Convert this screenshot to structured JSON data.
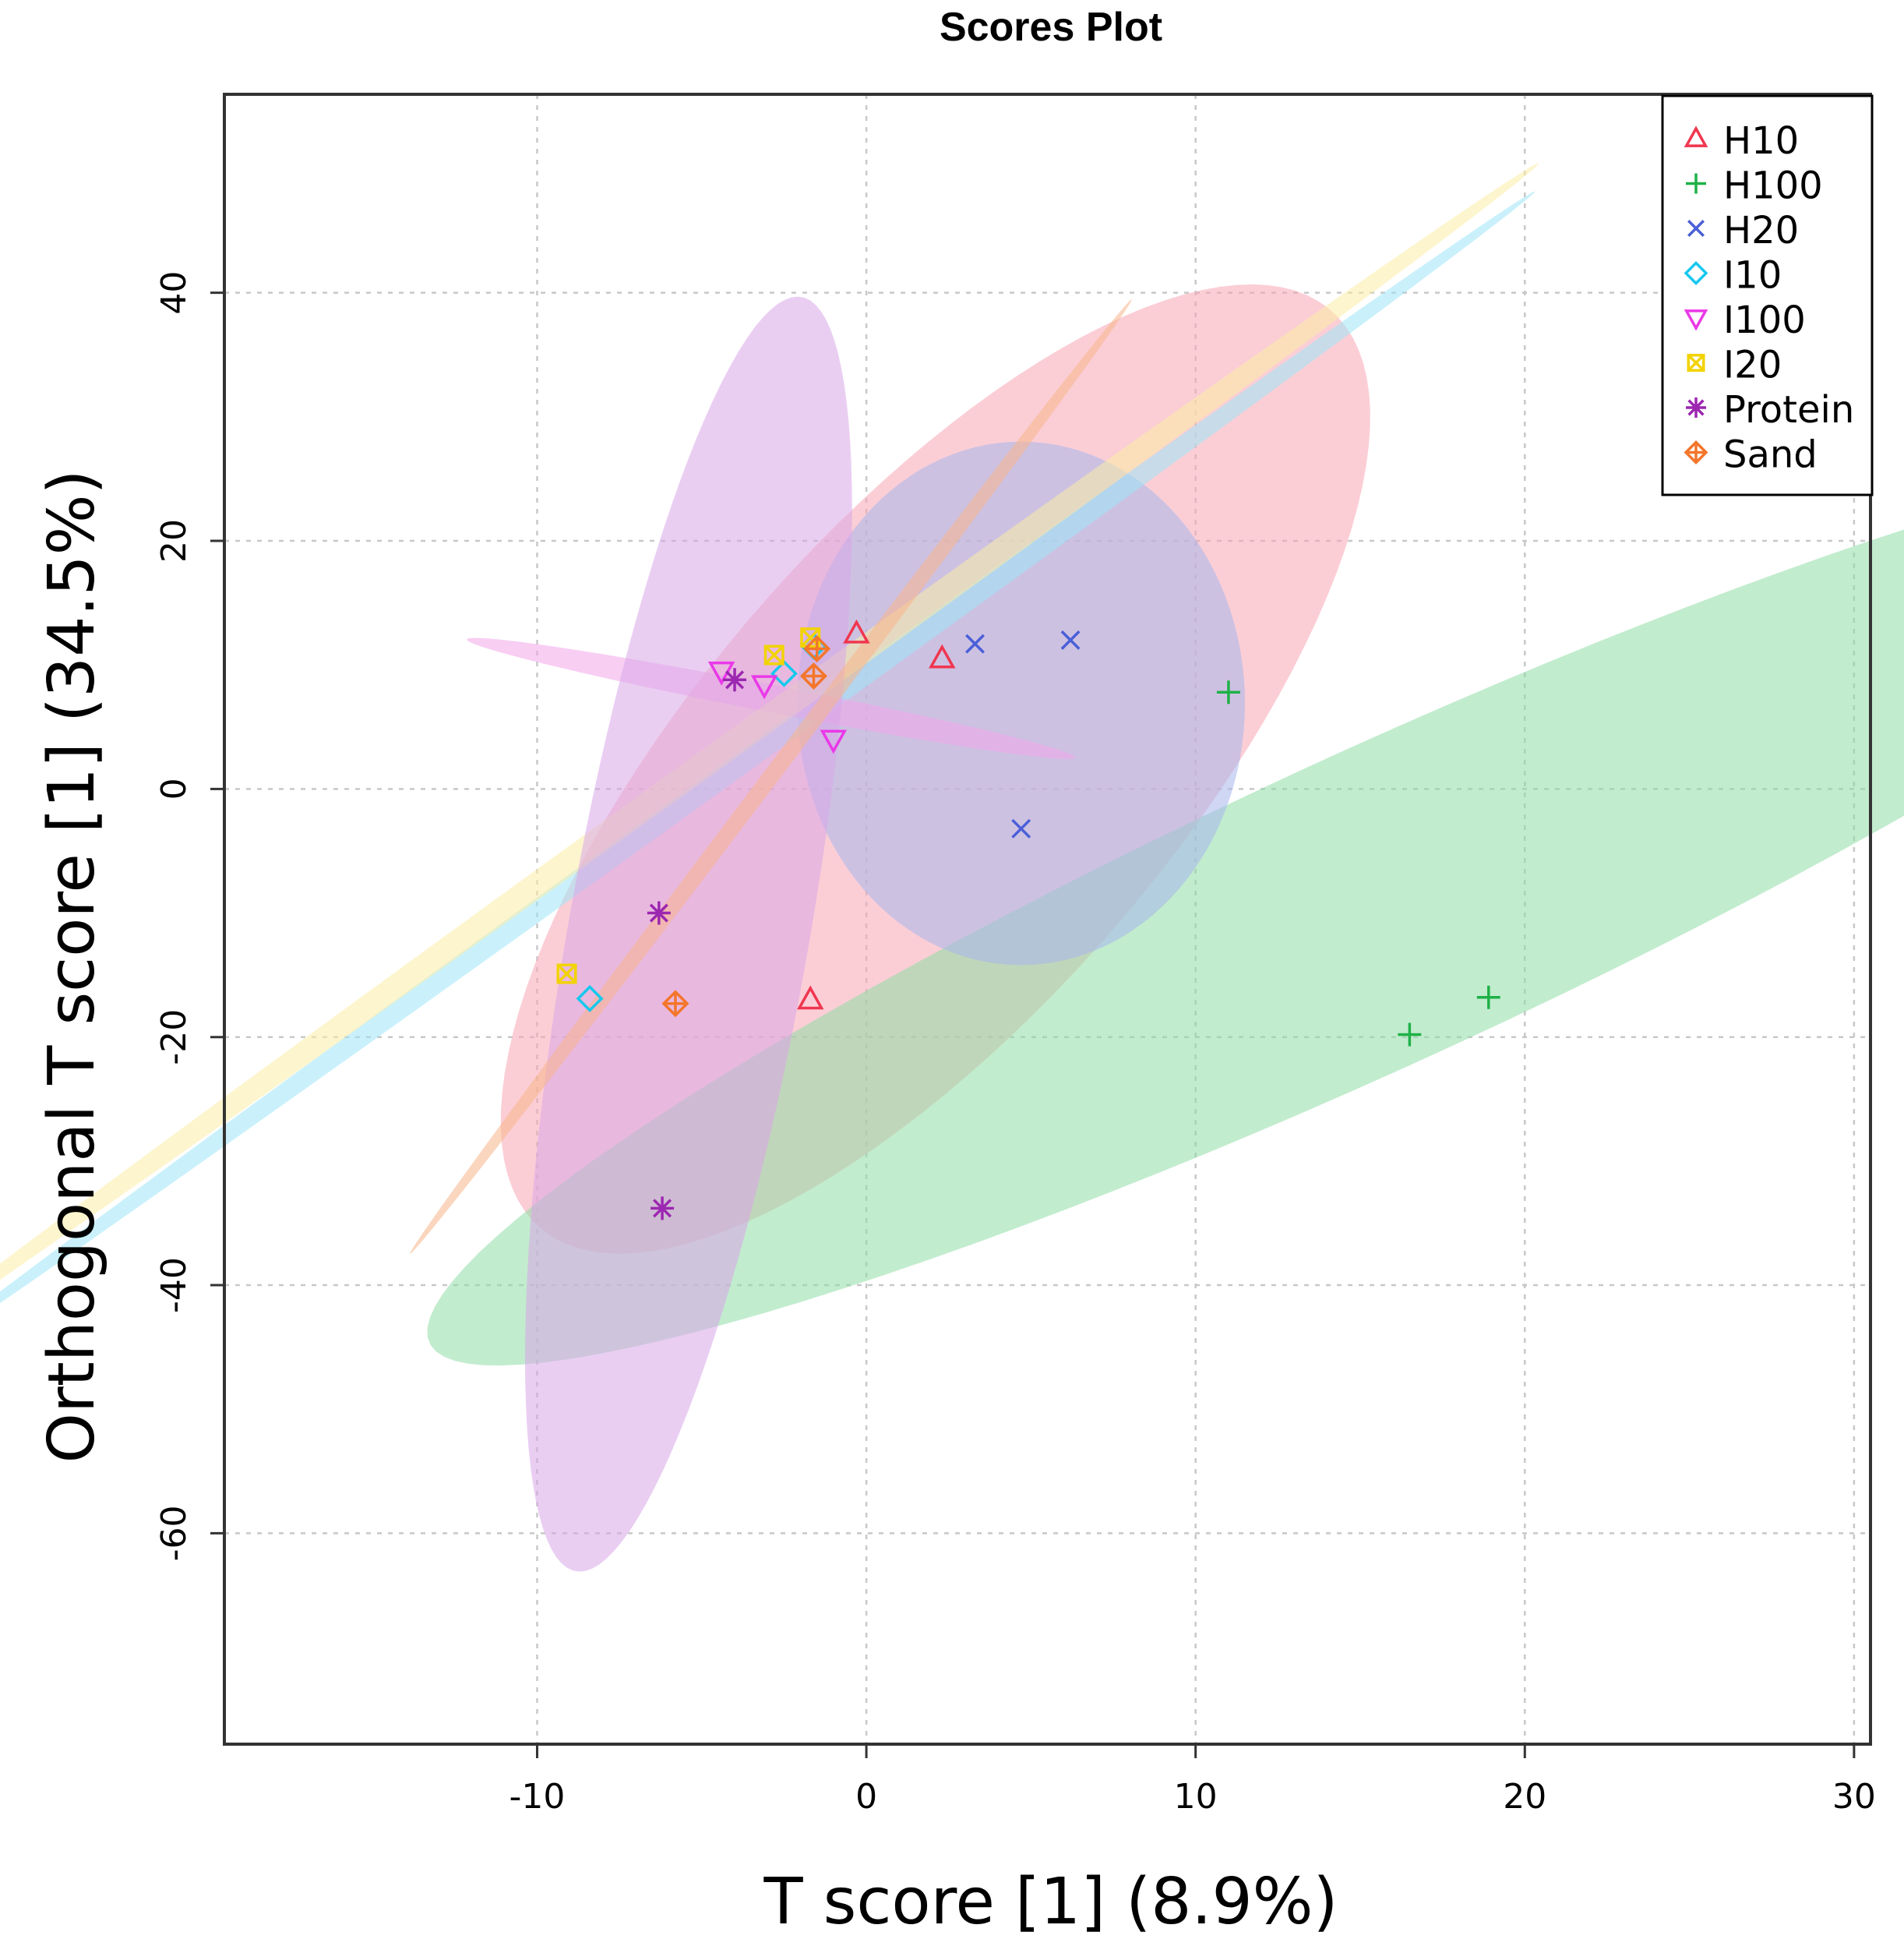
{
  "chart_data": {
    "type": "scatter",
    "title": "Scores Plot",
    "xlabel": "T score [1] (8.9%)",
    "ylabel": "Orthogonal T score [1] (34.5%)",
    "xlim": [
      -19.5,
      30.5
    ],
    "ylim": [
      -77,
      56
    ],
    "x_ticks": [
      -10,
      0,
      10,
      20,
      30
    ],
    "y_ticks": [
      -60,
      -40,
      -20,
      0,
      20,
      40
    ],
    "x_tick_labels": [
      "-10",
      "0",
      "10",
      "20",
      "30"
    ],
    "y_tick_labels": [
      "-60",
      "-40",
      "-20",
      "0",
      "20",
      "40"
    ],
    "grid": true,
    "legend_position": "top-right",
    "series": [
      {
        "name": "H10",
        "marker": "triangle",
        "color": "#f0364f",
        "fill": "#f7a6b4",
        "points": [
          [
            -0.3,
            12.5
          ],
          [
            2.3,
            10.5
          ],
          [
            -1.7,
            -17.0
          ]
        ],
        "ellipse": {
          "center": [
            2.1,
            1.6
          ],
          "semi_major": 40.3,
          "semi_minor": 8.8,
          "angle_deg": 75.5
        }
      },
      {
        "name": "H100",
        "marker": "plus",
        "color": "#1fb148",
        "fill": "#8fdca6",
        "points": [
          [
            11.0,
            7.8
          ],
          [
            16.5,
            -19.8
          ],
          [
            18.9,
            -16.8
          ]
        ],
        "ellipse": {
          "center": [
            15.5,
            -9.6
          ],
          "semi_major": 46.0,
          "semi_minor": 8.7,
          "angle_deg": 52.5
        }
      },
      {
        "name": "H20",
        "marker": "x",
        "color": "#4a5fd8",
        "fill": "#a8b6ec",
        "points": [
          [
            3.3,
            11.7
          ],
          [
            6.2,
            12.0
          ],
          [
            4.7,
            -3.2
          ]
        ],
        "ellipse": {
          "center": [
            4.7,
            6.9
          ],
          "semi_major": 21.1,
          "semi_minor": 6.8,
          "angle_deg": 90
        }
      },
      {
        "name": "I10",
        "marker": "diamond",
        "color": "#16c8ee",
        "fill": "#9fe6f8",
        "points": [
          [
            -2.5,
            9.3
          ],
          [
            -8.4,
            -16.9
          ],
          [
            -1.6,
            11.5
          ]
        ],
        "ellipse": {
          "center": [
            -4.2,
            1.3
          ],
          "semi_major": 52.9,
          "semi_minor": 0.5,
          "angle_deg": 62.4
        }
      },
      {
        "name": "I100",
        "marker": "triangle-down",
        "color": "#ea38e8",
        "fill": "#f2a6ea",
        "points": [
          [
            -4.4,
            9.5
          ],
          [
            -3.1,
            8.4
          ],
          [
            -1.0,
            4.0
          ]
        ],
        "ellipse": {
          "center": [
            -2.9,
            7.3
          ],
          "semi_major": 10.4,
          "semi_minor": 1.0,
          "angle_deg": -27.5
        }
      },
      {
        "name": "I20",
        "marker": "square-x",
        "color": "#f2d300",
        "fill": "#fbeca6",
        "points": [
          [
            -2.8,
            10.8
          ],
          [
            -9.1,
            -14.9
          ],
          [
            -1.7,
            12.2
          ]
        ],
        "ellipse": {
          "center": [
            -4.6,
            2.6
          ],
          "semi_major": 54.0,
          "semi_minor": 0.6,
          "angle_deg": 62.4
        }
      },
      {
        "name": "Protein",
        "marker": "asterisk",
        "color": "#9c27b0",
        "fill": "#d9a6e8",
        "points": [
          [
            -4.0,
            8.8
          ],
          [
            -6.3,
            -10.0
          ],
          [
            -6.2,
            -33.8
          ]
        ],
        "ellipse": {
          "center": [
            -5.4,
            -11.7
          ],
          "semi_major": 51.5,
          "semi_minor": 3.7,
          "angle_deg": 86.3
        }
      },
      {
        "name": "Sand",
        "marker": "diamond-plus",
        "color": "#f4762b",
        "fill": "#f8b48a",
        "points": [
          [
            -1.5,
            11.3
          ],
          [
            -1.6,
            9.1
          ],
          [
            -5.8,
            -17.3
          ]
        ],
        "ellipse": {
          "center": [
            -2.9,
            1.0
          ],
          "semi_major": 40.0,
          "semi_minor": 0.3,
          "angle_deg": 74.1
        }
      }
    ]
  }
}
